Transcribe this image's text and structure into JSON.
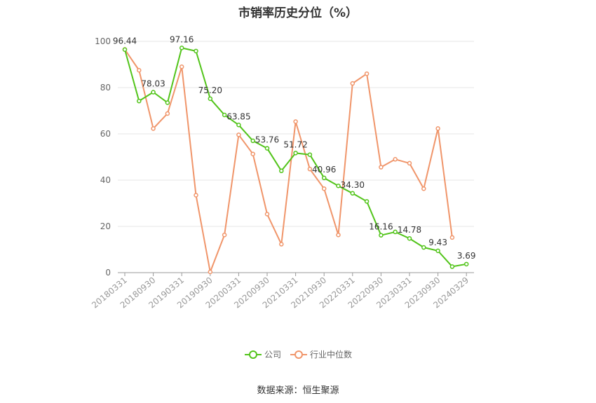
{
  "chart_data": {
    "type": "line",
    "title": "市销率历史分位（%）",
    "x": [
      "20180331",
      "20180630",
      "20180930",
      "20181231",
      "20190331",
      "20190630",
      "20190930",
      "20191231",
      "20200331",
      "20200630",
      "20200930",
      "20201231",
      "20210331",
      "20210630",
      "20210930",
      "20211231",
      "20220331",
      "20220630",
      "20220930",
      "20221231",
      "20230331",
      "20230630",
      "20230930",
      "20231231",
      "20240329"
    ],
    "x_tick_labels": [
      "20180331",
      "20180930",
      "20190331",
      "20190930",
      "20200331",
      "20200930",
      "20210331",
      "20210930",
      "20220331",
      "20220930",
      "20230331",
      "20230930",
      "20240329"
    ],
    "ylim": [
      0,
      100
    ],
    "y_ticks": [
      "0",
      "20",
      "40",
      "60",
      "80",
      "100"
    ],
    "grid": true,
    "legend_position": "bottom",
    "series": [
      {
        "name": "公司",
        "color": "#52c41a",
        "values": [
          96.44,
          74.2,
          78.03,
          73.5,
          97.16,
          95.8,
          75.2,
          68.2,
          63.85,
          57.0,
          53.76,
          44.0,
          51.72,
          51.0,
          40.96,
          37.5,
          34.3,
          30.8,
          16.16,
          17.6,
          14.78,
          10.9,
          9.43,
          2.6,
          3.69
        ],
        "value_labels": [
          "96.44",
          "",
          "78.03",
          "",
          "97.16",
          "",
          "75.20",
          "",
          "63.85",
          "",
          "53.76",
          "",
          "51.72",
          "",
          "40.96",
          "",
          "34.30",
          "",
          "16.16",
          "",
          "14.78",
          "",
          "9.43",
          "",
          "3.69"
        ]
      },
      {
        "name": "行业中位数",
        "color": "#f0956a",
        "values": [
          96.5,
          87.5,
          62.3,
          68.8,
          89.0,
          33.5,
          0.3,
          16.3,
          59.6,
          51.3,
          25.3,
          12.3,
          65.3,
          44.8,
          36.3,
          16.3,
          81.8,
          86.0,
          45.6,
          49.0,
          47.3,
          36.3,
          62.3,
          15.2,
          null
        ]
      }
    ]
  },
  "footer": {
    "source": "数据来源：恒生聚源"
  }
}
